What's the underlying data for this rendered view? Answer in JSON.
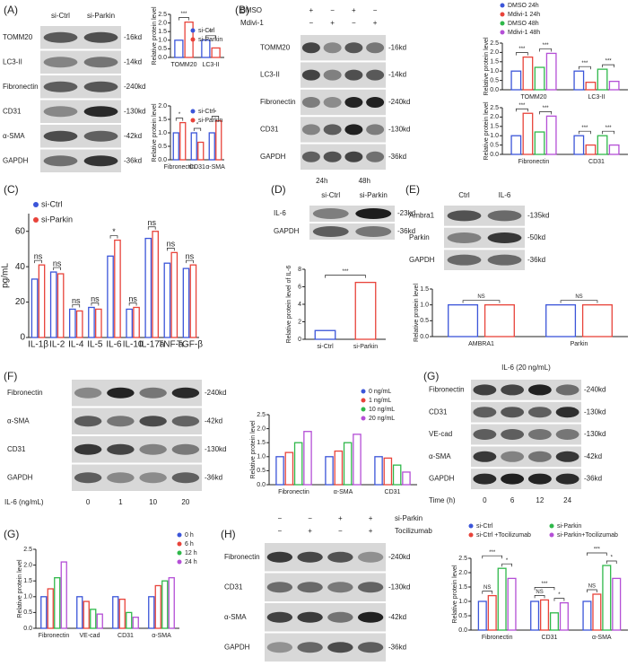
{
  "panel_labels": [
    "(A)",
    "(B)",
    "(C)",
    "(D)",
    "(E)",
    "(F)",
    "(G)",
    "(G)",
    "(H)"
  ],
  "blots": [
    {
      "columns": [
        "si-Ctrl",
        "si-Parkin"
      ],
      "rows": [
        {
          "name": "TOMM20",
          "size": "-16kd"
        },
        {
          "name": "LC3-II",
          "size": "-14kd"
        },
        {
          "name": "Fibronectin",
          "size": "-240kd"
        },
        {
          "name": "CD31",
          "size": "-130kd"
        },
        {
          "name": "α-SMA",
          "size": "-42kd"
        },
        {
          "name": "GAPDH",
          "size": "-36kd"
        }
      ]
    },
    {
      "conditions": [
        {
          "name": "DMSO",
          "marks": [
            "+",
            "−",
            "+",
            "−"
          ]
        },
        {
          "name": "Mdivi-1",
          "marks": [
            "−",
            "+",
            "−",
            "+"
          ]
        }
      ],
      "rows": [
        {
          "name": "TOMM20",
          "size": "-16kd"
        },
        {
          "name": "LC3-II",
          "size": "-14kd"
        },
        {
          "name": "Fibronectin",
          "size": "-240kd"
        },
        {
          "name": "CD31",
          "size": "-130kd"
        },
        {
          "name": "GAPDH",
          "size": "-36kd"
        }
      ],
      "footer": [
        "24h",
        "48h"
      ]
    },
    {
      "columns": [
        "si-Ctrl",
        "si-Parkin"
      ],
      "rows": [
        {
          "name": "IL-6",
          "size": "-23kd"
        },
        {
          "name": "GAPDH",
          "size": "-36kd"
        }
      ]
    },
    {
      "columns": [
        "Ctrl",
        "IL-6"
      ],
      "rows": [
        {
          "name": "Ambra1",
          "size": "-135kd"
        },
        {
          "name": "Parkin",
          "size": "-50kd"
        },
        {
          "name": "GAPDH",
          "size": "-36kd"
        }
      ]
    },
    {
      "rows": [
        {
          "name": "Fibronectin",
          "size": "-240kd"
        },
        {
          "name": "α-SMA",
          "size": "-42kd"
        },
        {
          "name": "CD31",
          "size": "-130kd"
        },
        {
          "name": "GAPDH",
          "size": "-36kd"
        }
      ],
      "footer_title": "IL-6 (ng/mL)",
      "footer": [
        "0",
        "1",
        "10",
        "20"
      ]
    },
    {
      "title": "IL-6 (20 ng/mL)",
      "rows": [
        {
          "name": "Fibronectin",
          "size": "-240kd"
        },
        {
          "name": "CD31",
          "size": "-130kd"
        },
        {
          "name": "VE-cad",
          "size": "-130kd"
        },
        {
          "name": "α-SMA",
          "size": "-42kd"
        },
        {
          "name": "GAPDH",
          "size": "-36kd"
        }
      ],
      "footer_title": "Time (h)",
      "footer": [
        "0",
        "6",
        "12",
        "24"
      ]
    },
    {
      "conditions": [
        {
          "name": "si-Parkin",
          "marks": [
            "−",
            "−",
            "+",
            "+"
          ]
        },
        {
          "name": "Tocilizumab",
          "marks": [
            "−",
            "+",
            "−",
            "+"
          ]
        }
      ],
      "rows": [
        {
          "name": "Fibronectin",
          "size": "-240kd"
        },
        {
          "name": "CD31",
          "size": "-130kd"
        },
        {
          "name": "α-SMA",
          "size": "-42kd"
        },
        {
          "name": "GAPDH",
          "size": "-36kd"
        }
      ]
    }
  ],
  "chart_data": [
    {
      "type": "bar",
      "ylabel": "Relative protein level",
      "categories": [
        "TOMM20",
        "LC3-II"
      ],
      "series": [
        {
          "name": "si-Ctrl",
          "color": "#3b55d9",
          "values": [
            1.0,
            1.0
          ]
        },
        {
          "name": "si-Parkin",
          "color": "#e8433a",
          "values": [
            2.05,
            0.55
          ]
        }
      ],
      "ylim": [
        0,
        2.5
      ],
      "yticks": [
        {
          "value": 0,
          "label": "0.0"
        },
        {
          "value": 0.5,
          "label": "0.5"
        },
        {
          "value": 1,
          "label": "1.0"
        },
        {
          "value": 1.5,
          "label": "1.5"
        },
        {
          "value": 2,
          "label": "2.0"
        },
        {
          "value": 2.5,
          "label": "2.5"
        }
      ],
      "significance": [
        "***",
        "**"
      ]
    },
    {
      "type": "bar",
      "ylabel": "Relative protein level",
      "categories": [
        "Fibronectin",
        "CD31",
        "α-SMA"
      ],
      "series": [
        {
          "name": "si-Ctrl",
          "color": "#3b55d9",
          "values": [
            1.0,
            1.0,
            1.0
          ]
        },
        {
          "name": "si-Parkin",
          "color": "#e8433a",
          "values": [
            1.38,
            0.65,
            1.45
          ]
        }
      ],
      "ylim": [
        0,
        2
      ],
      "yticks": [
        {
          "value": 0,
          "label": "0.0"
        },
        {
          "value": 0.5,
          "label": "0.5"
        },
        {
          "value": 1,
          "label": "1.0"
        },
        {
          "value": 1.5,
          "label": "1.5"
        },
        {
          "value": 2,
          "label": "2.0"
        }
      ],
      "significance": [
        "*",
        "*",
        "*"
      ]
    },
    {
      "type": "bar",
      "ylabel": "Relative protein level",
      "categories": [
        "TOMM20",
        "LC3-II"
      ],
      "series": [
        {
          "name": "DMSO 24h",
          "color": "#3b55d9",
          "values": [
            1.0,
            1.0
          ]
        },
        {
          "name": "Mdivi-1 24h",
          "color": "#e8433a",
          "values": [
            1.75,
            0.4
          ]
        },
        {
          "name": "DMSO 48h",
          "color": "#2fb84a",
          "values": [
            1.2,
            1.1
          ]
        },
        {
          "name": "Mdivi-1 48h",
          "color": "#b44fd6",
          "values": [
            1.95,
            0.45
          ]
        }
      ],
      "ylim": [
        0,
        2.5
      ],
      "yticks": [
        {
          "value": 0,
          "label": "0.0"
        },
        {
          "value": 0.5,
          "label": "0.5"
        },
        {
          "value": 1,
          "label": "1.0"
        },
        {
          "value": 1.5,
          "label": "1.5"
        },
        {
          "value": 2,
          "label": "2.0"
        },
        {
          "value": 2.5,
          "label": "2.5"
        }
      ],
      "significance": [
        [
          "***",
          "***"
        ],
        [
          "***",
          "***"
        ]
      ]
    },
    {
      "type": "bar",
      "ylabel": "Relative protein level",
      "categories": [
        "Fibronectin",
        "CD31"
      ],
      "series": [
        {
          "color": "#3b55d9",
          "values": [
            1.0,
            1.0
          ]
        },
        {
          "color": "#e8433a",
          "values": [
            2.2,
            0.5
          ]
        },
        {
          "color": "#2fb84a",
          "values": [
            1.2,
            1.0
          ]
        },
        {
          "color": "#b44fd6",
          "values": [
            2.05,
            0.5
          ]
        }
      ],
      "ylim": [
        0,
        2.5
      ],
      "yticks": [
        {
          "value": 0,
          "label": "0.0"
        },
        {
          "value": 0.5,
          "label": "0.5"
        },
        {
          "value": 1,
          "label": "1.0"
        },
        {
          "value": 1.5,
          "label": "1.5"
        },
        {
          "value": 2,
          "label": "2.0"
        },
        {
          "value": 2.5,
          "label": "2.5"
        }
      ],
      "significance": [
        [
          "***",
          "***"
        ],
        [
          "***",
          "***"
        ]
      ]
    },
    {
      "type": "bar",
      "ylabel": "pg/mL",
      "categories": [
        "IL-1β",
        "IL-2",
        "IL-4",
        "IL-5",
        "IL-6",
        "IL-10",
        "IL-17a",
        "TNF-a",
        "TGF-β"
      ],
      "series": [
        {
          "name": "si-Ctrl",
          "color": "#3b55d9",
          "values": [
            33,
            37,
            16,
            17,
            46,
            16,
            56,
            42,
            39
          ]
        },
        {
          "name": "si-Parkin",
          "color": "#e8433a",
          "values": [
            41,
            36,
            15,
            16,
            55,
            17,
            60,
            48,
            41
          ]
        }
      ],
      "ylim": [
        0,
        70
      ],
      "yticks": [
        0,
        20,
        40,
        60
      ],
      "significance": [
        "ns",
        "ns",
        "ns",
        "ns",
        "*",
        "ns",
        "ns",
        "ns",
        "ns"
      ]
    },
    {
      "type": "bar",
      "ylabel": "Relative protein level of IL-6",
      "categories": [
        "si-Ctrl",
        "si-Parkin"
      ],
      "values": [
        1.0,
        6.5
      ],
      "colors": [
        "#3b55d9",
        "#e8433a"
      ],
      "ylim": [
        0,
        8
      ],
      "yticks": [
        0,
        2,
        4,
        6,
        8
      ],
      "significance": "***"
    },
    {
      "type": "bar",
      "ylabel": "Relative protein level",
      "categories": [
        "AMBRA1",
        "Parkin"
      ],
      "series": [
        {
          "color": "#3b55d9",
          "values": [
            1.0,
            1.0
          ]
        },
        {
          "color": "#e8433a",
          "values": [
            1.0,
            1.0
          ]
        }
      ],
      "ylim": [
        0,
        1.5
      ],
      "yticks": [
        {
          "value": 0,
          "label": "0.0"
        },
        {
          "value": 0.5,
          "label": "0.5"
        },
        {
          "value": 1,
          "label": "1.0"
        },
        {
          "value": 1.5,
          "label": "1.5"
        }
      ],
      "significance": [
        "NS",
        "NS"
      ]
    },
    {
      "type": "bar",
      "ylabel": "Relative protein level",
      "categories": [
        "Fibronectin",
        "α-SMA",
        "CD31"
      ],
      "series": [
        {
          "name": "0 ng/mL",
          "color": "#3b55d9",
          "values": [
            1.0,
            1.0,
            1.0
          ]
        },
        {
          "name": "1 ng/mL",
          "color": "#e8433a",
          "values": [
            1.15,
            1.2,
            0.95
          ]
        },
        {
          "name": "10 ng/mL",
          "color": "#2fb84a",
          "values": [
            1.5,
            1.5,
            0.7
          ]
        },
        {
          "name": "20 ng/mL",
          "color": "#b44fd6",
          "values": [
            1.9,
            1.8,
            0.45
          ]
        }
      ],
      "ylim": [
        0,
        2.5
      ],
      "yticks": [
        {
          "value": 0,
          "label": "0.0"
        },
        {
          "value": 0.5,
          "label": "0.5"
        },
        {
          "value": 1,
          "label": "1.0"
        },
        {
          "value": 1.5,
          "label": "1.5"
        },
        {
          "value": 2,
          "label": "2.0"
        },
        {
          "value": 2.5,
          "label": "2.5"
        }
      ]
    },
    {
      "type": "bar",
      "ylabel": "Relative protein level",
      "categories": [
        "Fibronectin",
        "VE-cad",
        "CD31",
        "α-SMA"
      ],
      "series": [
        {
          "name": "0 h",
          "color": "#3b55d9",
          "values": [
            1.0,
            1.0,
            1.0,
            1.0
          ]
        },
        {
          "name": "6 h",
          "color": "#e8433a",
          "values": [
            1.25,
            0.85,
            0.92,
            1.35
          ]
        },
        {
          "name": "12 h",
          "color": "#2fb84a",
          "values": [
            1.6,
            0.6,
            0.5,
            1.5
          ]
        },
        {
          "name": "24 h",
          "color": "#b44fd6",
          "values": [
            2.1,
            0.45,
            0.35,
            1.6
          ]
        }
      ],
      "ylim": [
        0,
        2.5
      ],
      "yticks": [
        {
          "value": 0,
          "label": "0.0"
        },
        {
          "value": 0.5,
          "label": "0.5"
        },
        {
          "value": 1,
          "label": "1.0"
        },
        {
          "value": 1.5,
          "label": "1.5"
        },
        {
          "value": 2,
          "label": "2.0"
        },
        {
          "value": 2.5,
          "label": "2.5"
        }
      ]
    },
    {
      "type": "bar",
      "ylabel": "Relative protein level",
      "categories": [
        "Fibronectin",
        "CD31",
        "α-SMA"
      ],
      "series": [
        {
          "name": "si-Ctrl",
          "color": "#3b55d9",
          "values": [
            1.0,
            1.0,
            1.0
          ]
        },
        {
          "name": "si-Ctrl +Tocilizumab",
          "color": "#e8433a",
          "values": [
            1.2,
            1.05,
            1.25
          ]
        },
        {
          "name": "si-Parkin",
          "color": "#2fb84a",
          "values": [
            2.15,
            0.6,
            2.25
          ]
        },
        {
          "name": "si-Parkin+Tocilizumab",
          "color": "#b44fd6",
          "values": [
            1.8,
            0.95,
            1.8
          ]
        }
      ],
      "ylim": [
        0,
        2.5
      ],
      "yticks": [
        {
          "value": 0,
          "label": "0.0"
        },
        {
          "value": 0.5,
          "label": "0.5"
        },
        {
          "value": 1,
          "label": "1.0"
        },
        {
          "value": 1.5,
          "label": "1.5"
        },
        {
          "value": 2,
          "label": "2.0"
        },
        {
          "value": 2.5,
          "label": "2.5"
        }
      ],
      "significance": [
        [
          "NS",
          "***",
          "*"
        ],
        [
          "NS",
          "***",
          "*"
        ],
        [
          "NS",
          "***",
          "*"
        ]
      ]
    }
  ]
}
